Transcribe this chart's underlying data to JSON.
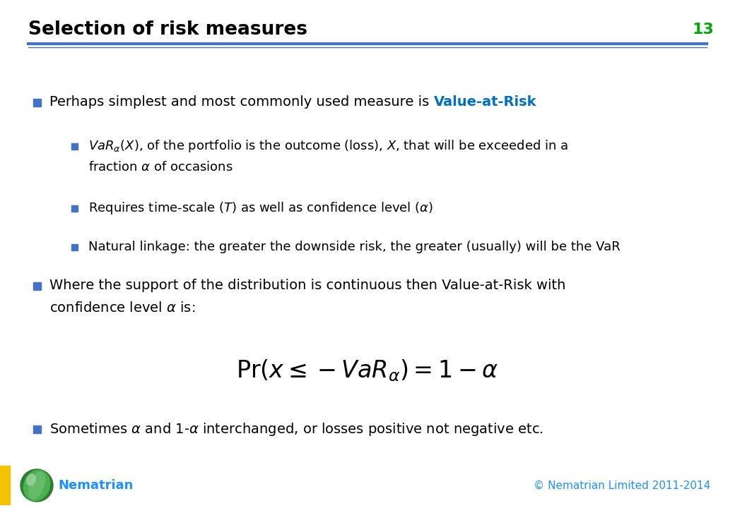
{
  "title": "Selection of risk measures",
  "slide_number": "13",
  "title_color": "#000000",
  "title_fontsize": 19,
  "slide_number_color": "#00AA00",
  "header_line_color1": "#4472C4",
  "header_line_color2": "#4472C4",
  "background_color": "#FFFFFF",
  "bullet_color": "#4472C4",
  "sub_bullet_color": "#4472C4",
  "text_color": "#000000",
  "var_highlight_color": "#0070C0",
  "footer_text": "Nematrian",
  "footer_color": "#1E90FF",
  "copyright_text": "© Nematrian Limited 2011-2014",
  "copyright_color": "#1E90FF",
  "bullet1_prefix": "Perhaps simplest and most commonly used measure is ",
  "bullet1_highlight": "Value-at-Risk",
  "sub1_line1": "$\\mathit{VaR}_{\\alpha}\\mathit{(X)}$, of the portfolio is the outcome (loss), $\\mathit{X}$, that will be exceeded in a",
  "sub1_line2": "fraction $\\alpha$ of occasions",
  "sub2": "Requires time-scale ($\\mathit{T}$) as well as confidence level ($\\alpha$)",
  "sub3": "Natural linkage: the greater the downside risk, the greater (usually) will be the VaR",
  "bullet2_line1": "Where the support of the distribution is continuous then Value-at-Risk with",
  "bullet2_line2": "confidence level $\\alpha$ is:",
  "formula": "$\\mathrm{Pr}\\left(x \\leq -\\mathit{VaR}_{\\alpha}\\right) = 1 - \\alpha$",
  "bullet3": "Sometimes $\\alpha$ and 1-$\\alpha$ interchanged, or losses positive not negative etc."
}
